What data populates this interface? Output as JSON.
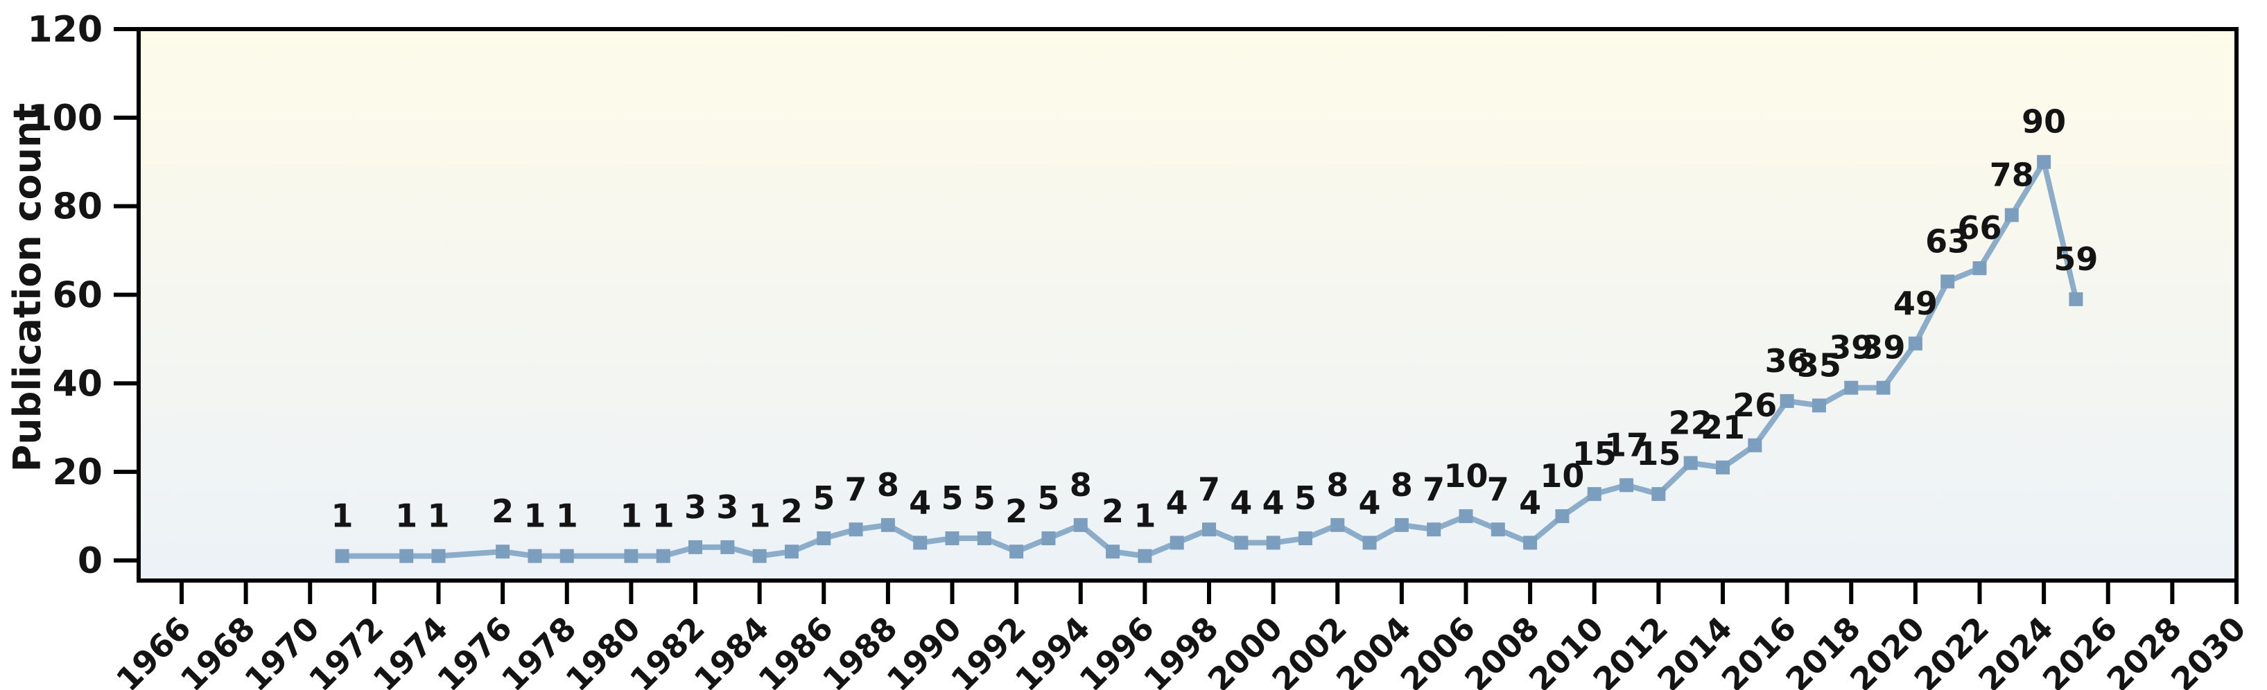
{
  "chart": {
    "ylabel": "Publication count"
  },
  "chart_data": {
    "type": "line",
    "title": "",
    "xlabel": "",
    "ylabel": "Publication count",
    "series": [
      {
        "name": "Publication count",
        "x": [
          1971,
          1973,
          1974,
          1976,
          1977,
          1978,
          1980,
          1981,
          1982,
          1983,
          1984,
          1985,
          1986,
          1987,
          1988,
          1989,
          1990,
          1991,
          1992,
          1993,
          1994,
          1995,
          1996,
          1997,
          1998,
          1999,
          2000,
          2001,
          2002,
          2003,
          2004,
          2005,
          2006,
          2007,
          2008,
          2009,
          2010,
          2011,
          2012,
          2013,
          2014,
          2015,
          2016,
          2017,
          2018,
          2019,
          2020,
          2021,
          2022,
          2023,
          2024,
          2025
        ],
        "values": [
          1,
          1,
          1,
          2,
          1,
          1,
          1,
          1,
          3,
          3,
          1,
          2,
          5,
          7,
          8,
          4,
          5,
          5,
          2,
          5,
          8,
          2,
          1,
          4,
          7,
          4,
          4,
          5,
          8,
          4,
          8,
          7,
          10,
          7,
          4,
          10,
          15,
          17,
          15,
          22,
          21,
          26,
          36,
          35,
          39,
          39,
          49,
          63,
          66,
          78,
          90,
          59
        ]
      }
    ],
    "point_labels_shown": true,
    "x_tick_labels": [
      "1966",
      "1968",
      "1970",
      "1972",
      "1974",
      "1976",
      "1978",
      "1980",
      "1982",
      "1984",
      "1986",
      "1988",
      "1990",
      "1992",
      "1994",
      "1996",
      "1998",
      "2000",
      "2002",
      "2004",
      "2006",
      "2008",
      "2010",
      "2012",
      "2014",
      "2016",
      "2018",
      "2020",
      "2022",
      "2024",
      "2026",
      "2028",
      "2030"
    ],
    "y_tick_labels": [
      "0",
      "20",
      "40",
      "60",
      "80",
      "100",
      "120"
    ],
    "xlim": [
      1964.66,
      2030.1
    ],
    "ylim": [
      -4.5,
      120
    ],
    "grid": false,
    "legend_position": "none",
    "marker_shape": "square",
    "colors": {
      "line": "#8cadc9",
      "marker": "#7b9ebf",
      "label_text": "#141414",
      "axis": "#000000",
      "plot_bg_top": "#fdfbe9",
      "plot_bg_mid": "#f7f7ef",
      "plot_bg_bottom": "#ecf2f7",
      "page_bg": "#ffffff"
    }
  }
}
